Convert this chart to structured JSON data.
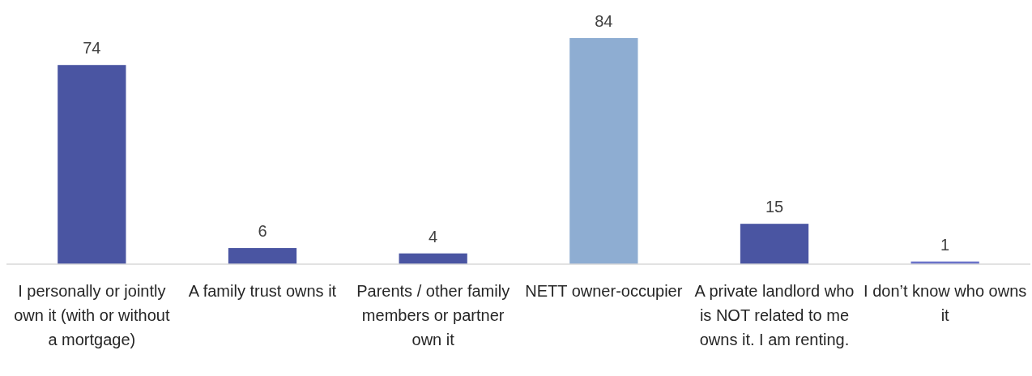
{
  "chart_data": {
    "type": "bar",
    "categories": [
      "I personally or jointly own it (with or without a mortgage)",
      "A family trust owns it",
      "Parents / other family members or partner own it",
      "NETT owner-occupier",
      "A private landlord who is NOT related to me owns it. I am renting.",
      "I don’t know who owns it"
    ],
    "values": [
      74,
      6,
      4,
      84,
      15,
      1
    ],
    "colors": [
      "#4a55a2",
      "#4a55a2",
      "#4a55a2",
      "#8eadd2",
      "#4a55a2",
      "#6b74c9"
    ],
    "data_labels": true
  }
}
